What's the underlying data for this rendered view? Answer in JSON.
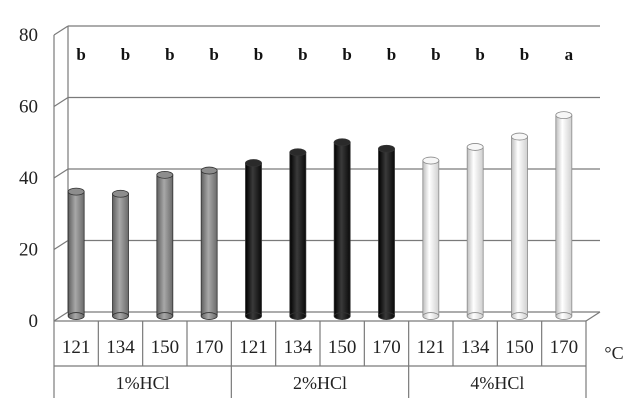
{
  "chart_data": {
    "type": "bar",
    "title": "",
    "xlabel": "",
    "ylabel": "",
    "ylim": [
      0,
      80
    ],
    "yticks": [
      "0",
      "20",
      "40",
      "60",
      "80"
    ],
    "x_unit": "°C",
    "grid": true,
    "legend": "none",
    "groups": [
      {
        "name": "1%HCl",
        "color": "#808080",
        "categories": [
          "121",
          "134",
          "150",
          "170"
        ],
        "values": [
          34.8,
          34.2,
          39.5,
          40.7
        ],
        "significance": [
          "b",
          "b",
          "b",
          "b"
        ]
      },
      {
        "name": "2%HCl",
        "color": "#1f1f1f",
        "categories": [
          "121",
          "134",
          "150",
          "170"
        ],
        "values": [
          42.8,
          45.8,
          48.6,
          46.8
        ],
        "significance": [
          "b",
          "b",
          "b",
          "b"
        ]
      },
      {
        "name": "4%HCl",
        "color": "#ededed",
        "categories": [
          "121",
          "134",
          "150",
          "170"
        ],
        "values": [
          43.5,
          47.3,
          50.2,
          56.2
        ],
        "significance": [
          "b",
          "b",
          "b",
          "a"
        ]
      }
    ]
  }
}
